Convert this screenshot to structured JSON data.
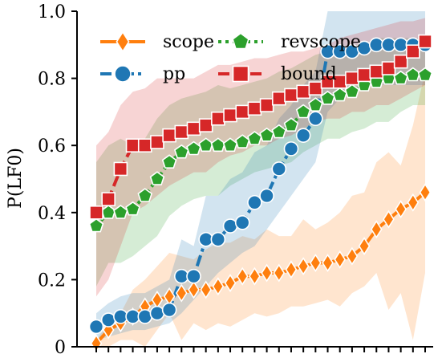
{
  "chart_data": {
    "type": "line",
    "xlabel": "",
    "ylabel": "P(LF0)",
    "ylim": [
      0,
      1
    ],
    "y_ticks": [
      "0",
      "0.2",
      "0.4",
      "0.6",
      "0.8",
      "1.0"
    ],
    "x": [
      1,
      2,
      3,
      4,
      5,
      6,
      7,
      8,
      9,
      10,
      11,
      12,
      13,
      14,
      15,
      16,
      17,
      18,
      19,
      20,
      21,
      22,
      23,
      24,
      25,
      26,
      27,
      28
    ],
    "legend_placement": "top",
    "series": [
      {
        "name": "scope",
        "color": "#ff7f0e",
        "marker": "diamond",
        "linestyle": "solid",
        "values": [
          0.01,
          0.05,
          0.07,
          0.09,
          0.12,
          0.14,
          0.15,
          0.16,
          0.17,
          0.17,
          0.18,
          0.19,
          0.21,
          0.21,
          0.22,
          0.22,
          0.23,
          0.24,
          0.25,
          0.25,
          0.26,
          0.27,
          0.3,
          0.35,
          0.38,
          0.41,
          0.43,
          0.46
        ],
        "band_low": [
          0.0,
          0.0,
          0.02,
          0.02,
          0.0,
          0.05,
          0.1,
          0.02,
          0.07,
          0.05,
          0.07,
          0.06,
          0.08,
          0.1,
          0.09,
          0.1,
          0.12,
          0.12,
          0.13,
          0.14,
          0.12,
          0.16,
          0.18,
          0.22,
          0.11,
          0.16,
          0.02,
          0.22
        ],
        "band_high": [
          0.02,
          0.07,
          0.1,
          0.17,
          0.2,
          0.24,
          0.28,
          0.27,
          0.26,
          0.29,
          0.31,
          0.31,
          0.33,
          0.32,
          0.35,
          0.33,
          0.33,
          0.38,
          0.35,
          0.37,
          0.4,
          0.45,
          0.46,
          0.55,
          0.58,
          0.54,
          0.66,
          0.82
        ]
      },
      {
        "name": "revscope",
        "color": "#2ca02c",
        "marker": "pentagon",
        "linestyle": "dotted",
        "values": [
          0.36,
          0.4,
          0.4,
          0.41,
          0.45,
          0.5,
          0.55,
          0.58,
          0.59,
          0.6,
          0.6,
          0.6,
          0.61,
          0.62,
          0.63,
          0.64,
          0.66,
          0.7,
          0.72,
          0.74,
          0.75,
          0.76,
          0.78,
          0.79,
          0.8,
          0.8,
          0.81,
          0.81
        ],
        "band_low": [
          0.18,
          0.25,
          0.25,
          0.27,
          0.3,
          0.33,
          0.39,
          0.42,
          0.44,
          0.45,
          0.45,
          0.48,
          0.5,
          0.52,
          0.53,
          0.54,
          0.55,
          0.58,
          0.6,
          0.62,
          0.62,
          0.64,
          0.65,
          0.67,
          0.67,
          0.7,
          0.72,
          0.72
        ],
        "band_high": [
          0.55,
          0.6,
          0.62,
          0.6,
          0.62,
          0.68,
          0.72,
          0.74,
          0.75,
          0.76,
          0.78,
          0.77,
          0.78,
          0.79,
          0.8,
          0.82,
          0.83,
          0.85,
          0.87,
          0.88,
          0.88,
          0.9,
          0.9,
          0.92,
          0.92,
          0.92,
          0.92,
          0.92
        ]
      },
      {
        "name": "pp",
        "color": "#1f77b4",
        "marker": "circle",
        "linestyle": "dashdot",
        "values": [
          0.06,
          0.08,
          0.09,
          0.09,
          0.09,
          0.1,
          0.11,
          0.21,
          0.21,
          0.32,
          0.32,
          0.36,
          0.37,
          0.43,
          0.45,
          0.53,
          0.59,
          0.63,
          0.68,
          0.88,
          0.88,
          0.88,
          0.89,
          0.9,
          0.9,
          0.9,
          0.9,
          0.9
        ],
        "band_low": [
          0.02,
          0.03,
          0.04,
          0.05,
          0.05,
          0.06,
          0.07,
          0.1,
          0.14,
          0.18,
          0.22,
          0.25,
          0.28,
          0.3,
          0.35,
          0.4,
          0.45,
          0.5,
          0.55,
          0.7,
          0.74,
          0.76,
          0.78,
          0.78,
          0.78,
          0.78,
          0.78,
          0.78
        ],
        "band_high": [
          0.1,
          0.13,
          0.15,
          0.16,
          0.16,
          0.18,
          0.2,
          0.32,
          0.3,
          0.45,
          0.45,
          0.5,
          0.52,
          0.58,
          0.6,
          0.68,
          0.72,
          0.78,
          0.82,
          1.0,
          1.0,
          1.0,
          1.0,
          1.0,
          1.0,
          1.0,
          1.0,
          1.0
        ]
      },
      {
        "name": "bound",
        "color": "#d62728",
        "marker": "square",
        "linestyle": "dashed",
        "values": [
          0.4,
          0.44,
          0.53,
          0.6,
          0.6,
          0.61,
          0.63,
          0.64,
          0.65,
          0.66,
          0.68,
          0.69,
          0.7,
          0.71,
          0.72,
          0.74,
          0.75,
          0.76,
          0.77,
          0.79,
          0.79,
          0.8,
          0.81,
          0.82,
          0.83,
          0.85,
          0.88,
          0.91
        ],
        "band_low": [
          0.15,
          0.2,
          0.3,
          0.4,
          0.42,
          0.45,
          0.48,
          0.5,
          0.52,
          0.52,
          0.55,
          0.57,
          0.58,
          0.6,
          0.6,
          0.62,
          0.63,
          0.65,
          0.67,
          0.68,
          0.68,
          0.7,
          0.7,
          0.72,
          0.72,
          0.74,
          0.76,
          0.78
        ],
        "band_high": [
          0.6,
          0.64,
          0.72,
          0.76,
          0.77,
          0.8,
          0.8,
          0.8,
          0.8,
          0.82,
          0.84,
          0.84,
          0.85,
          0.86,
          0.86,
          0.87,
          0.88,
          0.88,
          0.89,
          0.9,
          0.92,
          0.93,
          0.94,
          0.95,
          0.96,
          0.97,
          0.97,
          0.98
        ]
      }
    ]
  }
}
